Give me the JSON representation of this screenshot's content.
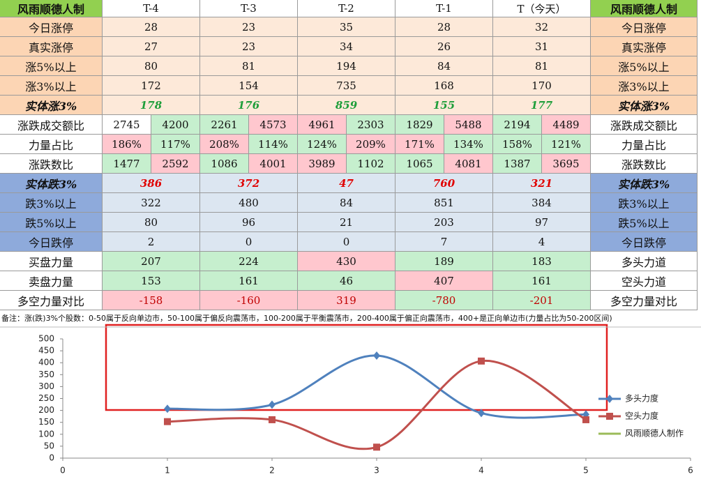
{
  "table": {
    "header": [
      "风雨顺德人制",
      "T-4",
      "T-3",
      "T-2",
      "T-1",
      "T（今天）",
      "风雨顺德人制"
    ],
    "header_bg": "#92d050",
    "rows": [
      {
        "label": "今日涨停",
        "right": "今日涨停",
        "label_bg": "#fcd5b4",
        "right_bg": "#fcd5b4",
        "cells": [
          28,
          23,
          35,
          28,
          32
        ],
        "cell_bg": [
          "#fde9d9",
          "#fde9d9",
          "#fde9d9",
          "#fde9d9",
          "#fde9d9"
        ]
      },
      {
        "label": "真实涨停",
        "right": "真实涨停",
        "label_bg": "#fcd5b4",
        "right_bg": "#fcd5b4",
        "cells": [
          27,
          23,
          34,
          26,
          31
        ],
        "cell_bg": [
          "#fde9d9",
          "#fde9d9",
          "#fde9d9",
          "#fde9d9",
          "#fde9d9"
        ]
      },
      {
        "label": "涨5%以上",
        "right": "涨5%以上",
        "label_bg": "#fcd5b4",
        "right_bg": "#fcd5b4",
        "cells": [
          80,
          81,
          194,
          84,
          81
        ],
        "cell_bg": [
          "#fde9d9",
          "#fde9d9",
          "#fde9d9",
          "#fde9d9",
          "#fde9d9"
        ]
      },
      {
        "label": "涨3%以上",
        "right": "涨3%以上",
        "label_bg": "#fcd5b4",
        "right_bg": "#fcd5b4",
        "cells": [
          172,
          154,
          735,
          168,
          170
        ],
        "cell_bg": [
          "#fde9d9",
          "#fde9d9",
          "#fde9d9",
          "#fde9d9",
          "#fde9d9"
        ]
      },
      {
        "label": "实体涨3%",
        "right": "实体涨3%",
        "label_bg": "#fcd5b4",
        "right_bg": "#fcd5b4",
        "cells": [
          178,
          176,
          859,
          155,
          177
        ],
        "cell_bg": [
          "#fde9d9",
          "#fde9d9",
          "#fde9d9",
          "#fde9d9",
          "#fde9d9"
        ],
        "text_color": "#1e9e3a",
        "emphasis": true
      },
      {
        "label": "涨跌成交额比",
        "right": "涨跌成交额比",
        "label_bg": "#ffffff",
        "right_bg": "#ffffff",
        "cells": [
          [
            2745,
            4200
          ],
          [
            2261,
            4573
          ],
          [
            4961,
            2303
          ],
          [
            1829,
            5488
          ],
          [
            2194,
            4489
          ]
        ],
        "cell_bg": [
          [
            "#ffffff",
            "#c6efce"
          ],
          [
            "#c6efce",
            "#ffc7ce"
          ],
          [
            "#ffc7ce",
            "#c6efce"
          ],
          [
            "#c6efce",
            "#ffc7ce"
          ],
          [
            "#c6efce",
            "#ffc7ce"
          ]
        ]
      },
      {
        "label": "力量占比",
        "right": "力量占比",
        "label_bg": "#ffffff",
        "right_bg": "#ffffff",
        "cells": [
          [
            "186%",
            "117%"
          ],
          [
            "208%",
            "114%"
          ],
          [
            "124%",
            "209%"
          ],
          [
            "171%",
            "134%"
          ],
          [
            "158%",
            "121%"
          ]
        ],
        "cell_bg": [
          [
            "#ffc7ce",
            "#c6efce"
          ],
          [
            "#ffc7ce",
            "#c6efce"
          ],
          [
            "#c6efce",
            "#ffc7ce"
          ],
          [
            "#ffc7ce",
            "#c6efce"
          ],
          [
            "#c6efce",
            "#c6efce"
          ]
        ]
      },
      {
        "label": "涨跌数比",
        "right": "涨跌数比",
        "label_bg": "#ffffff",
        "right_bg": "#ffffff",
        "cells": [
          [
            1477,
            2592
          ],
          [
            1086,
            4001
          ],
          [
            3989,
            1102
          ],
          [
            1065,
            4081
          ],
          [
            1387,
            3695
          ]
        ],
        "cell_bg": [
          [
            "#c6efce",
            "#ffc7ce"
          ],
          [
            "#c6efce",
            "#ffc7ce"
          ],
          [
            "#ffc7ce",
            "#c6efce"
          ],
          [
            "#c6efce",
            "#ffc7ce"
          ],
          [
            "#c6efce",
            "#ffc7ce"
          ]
        ]
      },
      {
        "label": "实体跌3%",
        "right": "实体跌3%",
        "label_bg": "#8eaadb",
        "right_bg": "#8eaadb",
        "cells": [
          386,
          372,
          47,
          760,
          321
        ],
        "cell_bg": [
          "#dce6f1",
          "#dce6f1",
          "#dce6f1",
          "#dce6f1",
          "#dce6f1"
        ],
        "text_color": "#e00000",
        "emphasis": true
      },
      {
        "label": "跌3%以上",
        "right": "跌3%以上",
        "label_bg": "#8eaadb",
        "right_bg": "#8eaadb",
        "cells": [
          322,
          480,
          84,
          851,
          384
        ],
        "cell_bg": [
          "#dce6f1",
          "#dce6f1",
          "#dce6f1",
          "#dce6f1",
          "#dce6f1"
        ]
      },
      {
        "label": "跌5%以上",
        "right": "跌5%以上",
        "label_bg": "#8eaadb",
        "right_bg": "#8eaadb",
        "cells": [
          80,
          96,
          21,
          203,
          97
        ],
        "cell_bg": [
          "#dce6f1",
          "#dce6f1",
          "#dce6f1",
          "#dce6f1",
          "#dce6f1"
        ]
      },
      {
        "label": "今日跌停",
        "right": "今日跌停",
        "label_bg": "#8eaadb",
        "right_bg": "#8eaadb",
        "cells": [
          2,
          0,
          0,
          7,
          4
        ],
        "cell_bg": [
          "#dce6f1",
          "#dce6f1",
          "#dce6f1",
          "#dce6f1",
          "#dce6f1"
        ]
      },
      {
        "label": "买盘力量",
        "right": "多头力道",
        "label_bg": "#ffffff",
        "right_bg": "#ffffff",
        "cells": [
          207,
          224,
          430,
          189,
          183
        ],
        "cell_bg": [
          "#c6efce",
          "#c6efce",
          "#ffc7ce",
          "#c6efce",
          "#c6efce"
        ]
      },
      {
        "label": "卖盘力量",
        "right": "空头力道",
        "label_bg": "#ffffff",
        "right_bg": "#ffffff",
        "cells": [
          153,
          161,
          46,
          407,
          161
        ],
        "cell_bg": [
          "#c6efce",
          "#c6efce",
          "#c6efce",
          "#ffc7ce",
          "#c6efce"
        ]
      },
      {
        "label": "多空力量对比",
        "right": "多空力量对比",
        "label_bg": "#ffffff",
        "right_bg": "#ffffff",
        "cells": [
          -158,
          -160,
          319,
          -780,
          -201
        ],
        "cell_bg": [
          "#ffc7ce",
          "#ffc7ce",
          "#ffc7ce",
          "#c6efce",
          "#c6efce"
        ],
        "text_color": "#c00000"
      }
    ],
    "note": "备注：涨(跌)3%个股数：0-50属于反向单边市，50-100属于偏反向震荡市，100-200属于平衡震荡市，200-400属于偏正向震荡市，400+是正向单边市(力量占比为50-200区间)"
  },
  "chart_data": {
    "type": "line",
    "x": [
      1,
      2,
      3,
      4,
      5
    ],
    "xlim": [
      0,
      6
    ],
    "xticks": [
      0,
      1,
      2,
      3,
      4,
      5,
      6
    ],
    "ylim": [
      0,
      500
    ],
    "yticks": [
      0,
      50,
      100,
      150,
      200,
      250,
      300,
      350,
      400,
      450,
      500
    ],
    "series": [
      {
        "name": "多头力度",
        "color": "#4f81bd",
        "marker": "diamond",
        "values": [
          207,
          224,
          430,
          189,
          183
        ]
      },
      {
        "name": "空头力度",
        "color": "#c0504d",
        "marker": "square",
        "values": [
          153,
          161,
          46,
          407,
          161
        ]
      },
      {
        "name": "风雨顺德人制作",
        "color": "#9bbb59"
      }
    ]
  }
}
